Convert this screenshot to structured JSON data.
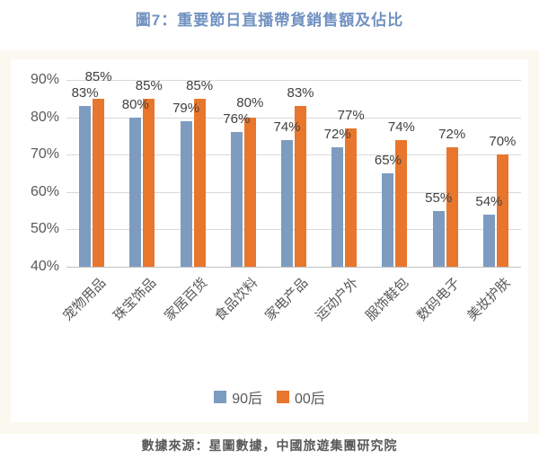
{
  "figure": {
    "title": "圖7：重要節日直播帶貨銷售額及佔比",
    "source": "數據來源：星圖數據，中國旅遊集團研究院"
  },
  "colors": {
    "title_text": "#7191C1",
    "series_90hou": "#7D9CC0",
    "series_00hou": "#E8762C",
    "gridline": "#D9D9D9",
    "axis_line": "#BFBFBF",
    "axis_text": "#595959",
    "value_label_text": "#404040",
    "category_text": "#595959",
    "legend_text": "#595959",
    "source_text": "#595959",
    "panel_background": "#FBF8F0",
    "chart_background": "#FFFFFF"
  },
  "chart_data": {
    "type": "bar",
    "title": "圖7：重要節日直播帶貨銷售額及佔比",
    "categories": [
      "宠物用品",
      "珠宝饰品",
      "家居百货",
      "食品饮料",
      "家电产品",
      "运动户外",
      "服饰鞋包",
      "数码电子",
      "美妆护肤"
    ],
    "series": [
      {
        "name": "90后",
        "color": "#7D9CC0",
        "values": [
          83,
          80,
          79,
          76,
          74,
          72,
          65,
          55,
          54
        ]
      },
      {
        "name": "00后",
        "color": "#E8762C",
        "values": [
          85,
          85,
          85,
          80,
          83,
          77,
          74,
          72,
          70
        ]
      }
    ],
    "value_label_suffix": "%",
    "ylim": [
      40,
      90
    ],
    "ytick_step": 10,
    "ytick_labels": [
      "40%",
      "50%",
      "60%",
      "70%",
      "80%",
      "90%"
    ],
    "grid": true,
    "legend_position": "bottom",
    "xlabel": "",
    "ylabel": ""
  }
}
